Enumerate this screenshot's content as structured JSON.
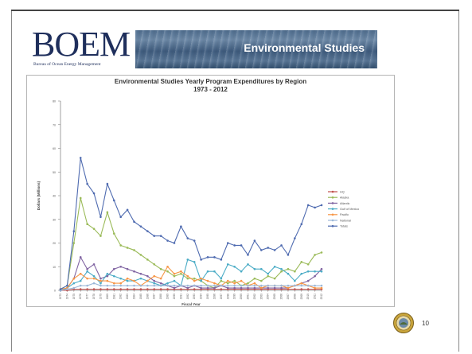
{
  "header": {
    "logo_text": "BOEM",
    "logo_subtitle": "Bureau of Ocean Energy Management",
    "banner_title": "Environmental Studies"
  },
  "footer": {
    "page_number": "10"
  },
  "chart_data": {
    "type": "line",
    "title": "Environmental Studies Yearly Program Expenditures by Region",
    "subtitle": "1973 - 2012",
    "xlabel": "Fiscal Year",
    "ylabel": "Dollars (Millions)",
    "ylim": [
      0,
      80
    ],
    "yticks": [
      0,
      10,
      20,
      30,
      40,
      50,
      60,
      70,
      80
    ],
    "grid": false,
    "legend_position": "right",
    "x": [
      1973,
      1974,
      1975,
      1976,
      1977,
      1978,
      1979,
      1980,
      1981,
      1982,
      1983,
      1984,
      1985,
      1986,
      1987,
      1988,
      1989,
      1990,
      1991,
      1992,
      1993,
      1994,
      1995,
      1996,
      1997,
      1998,
      1999,
      2000,
      2001,
      2002,
      2003,
      2004,
      2005,
      2006,
      2007,
      2008,
      2009,
      2010,
      2011,
      2012
    ],
    "series": [
      {
        "name": "HQ",
        "color": "#c0504d",
        "values": [
          0,
          0,
          0.5,
          0.5,
          0.5,
          0.5,
          0.5,
          0.5,
          0.5,
          0.5,
          0.5,
          0.5,
          0.5,
          0.5,
          0.5,
          0.5,
          0.5,
          0.5,
          0.5,
          0.5,
          0.5,
          0.5,
          0.5,
          0.5,
          0.5,
          0.5,
          0.5,
          0.5,
          0.5,
          0.5,
          0.5,
          0.5,
          0.5,
          0.5,
          0.5,
          0.5,
          0.5,
          0.5,
          0.5,
          0.5
        ]
      },
      {
        "name": "Alaska",
        "color": "#9bbb59",
        "values": [
          0.5,
          2,
          20,
          39,
          28,
          26,
          23,
          33,
          24,
          19,
          18,
          17,
          15,
          13,
          11,
          9,
          8,
          6,
          7,
          5,
          5,
          4,
          2,
          1,
          4,
          3,
          4,
          2,
          3,
          5,
          4,
          6,
          5,
          8,
          9,
          8,
          12,
          11,
          15,
          16
        ]
      },
      {
        "name": "Atlantic",
        "color": "#8064a2",
        "values": [
          0,
          1,
          5,
          14,
          9,
          11,
          5,
          6,
          9,
          10,
          9,
          8,
          7,
          6,
          4,
          3,
          2,
          1,
          2,
          1,
          2,
          1,
          1,
          1,
          2,
          1,
          1,
          1,
          1,
          1,
          1,
          1,
          1,
          1,
          1,
          2,
          3,
          4,
          6,
          9
        ]
      },
      {
        "name": "Gulf of Mexico",
        "color": "#4bacc6",
        "values": [
          0,
          1,
          3,
          4,
          8,
          6,
          3,
          7,
          6,
          5,
          4,
          4,
          5,
          4,
          3,
          2,
          3,
          4,
          2,
          13,
          12,
          4,
          8,
          8,
          5,
          11,
          10,
          8,
          11,
          9,
          9,
          7,
          10,
          9,
          7,
          4,
          7,
          8,
          8,
          8
        ]
      },
      {
        "name": "Pacific",
        "color": "#f79646",
        "values": [
          0.5,
          1,
          5,
          7,
          5,
          5,
          4,
          4,
          3,
          3,
          5,
          4,
          2,
          4,
          6,
          5,
          10,
          7,
          8,
          6,
          4,
          5,
          4,
          3,
          2,
          4,
          3,
          4,
          2,
          3,
          1,
          2,
          2,
          2,
          1,
          2,
          3,
          2,
          1,
          1
        ]
      },
      {
        "name": "National",
        "color": "#9cb8d8",
        "values": [
          0,
          0.5,
          1,
          2,
          2,
          3,
          2,
          2,
          2,
          2,
          2,
          2,
          2,
          2,
          2,
          2,
          2,
          2,
          2,
          2,
          2,
          2,
          2,
          2,
          2,
          2,
          2,
          2,
          2,
          2,
          2,
          2,
          2,
          2,
          2,
          2,
          2,
          2,
          2,
          2
        ]
      },
      {
        "name": "Totals",
        "color": "#4f6bb0",
        "values": [
          0.5,
          2,
          25,
          56,
          45,
          41,
          31,
          45,
          38,
          31,
          34,
          29,
          27,
          25,
          23,
          23,
          21,
          20,
          27,
          22,
          21,
          13,
          14,
          14,
          13,
          20,
          19,
          19,
          15,
          21,
          17,
          18,
          17,
          19,
          15,
          22,
          28,
          36,
          35,
          36
        ]
      }
    ]
  }
}
